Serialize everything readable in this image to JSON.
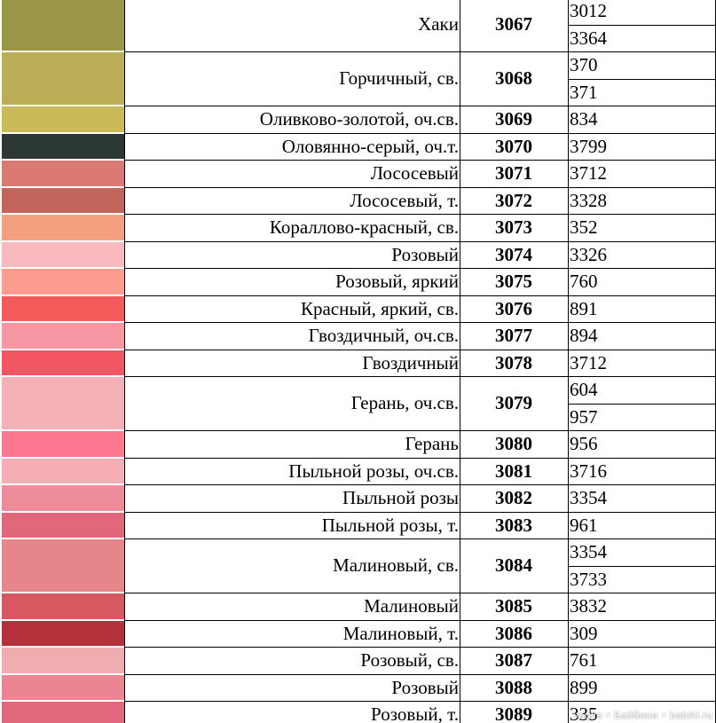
{
  "table": {
    "rows": [
      {
        "swatch": "#9b9748",
        "name": "Хаки",
        "code": "3067",
        "dmc": [
          "3012",
          "3364"
        ]
      },
      {
        "swatch": "#bcad57",
        "name": "Горчичный, св.",
        "code": "3068",
        "dmc": [
          "370",
          "371"
        ]
      },
      {
        "swatch": "#cbbb58",
        "name": "Оливково-золотой, оч.св.",
        "code": "3069",
        "dmc": [
          "834"
        ]
      },
      {
        "swatch": "#2c3833",
        "name": "Оловянно-серый, оч.т.",
        "code": "3070",
        "dmc": [
          "3799"
        ]
      },
      {
        "swatch": "#db7a72",
        "name": "Лососевый",
        "code": "3071",
        "dmc": [
          "3712"
        ]
      },
      {
        "swatch": "#c3645b",
        "name": "Лососевый, т.",
        "code": "3072",
        "dmc": [
          "3328"
        ]
      },
      {
        "swatch": "#f3a07f",
        "name": "Кораллово-красный, св.",
        "code": "3073",
        "dmc": [
          "352"
        ]
      },
      {
        "swatch": "#f8b9bf",
        "name": "Розовый",
        "code": "3074",
        "dmc": [
          "3326"
        ]
      },
      {
        "swatch": "#fd9d8f",
        "name": "Розовый, яркий",
        "code": "3075",
        "dmc": [
          "760"
        ]
      },
      {
        "swatch": "#f35b5b",
        "name": "Красный, яркий, св.",
        "code": "3076",
        "dmc": [
          "891"
        ]
      },
      {
        "swatch": "#f797a3",
        "name": "Гвоздичный, оч.св.",
        "code": "3077",
        "dmc": [
          "894"
        ]
      },
      {
        "swatch": "#f35663",
        "name": "Гвоздичный",
        "code": "3078",
        "dmc": [
          "3712"
        ]
      },
      {
        "swatch": "#f5b1b8",
        "name": "Герань, оч.св.",
        "code": "3079",
        "dmc": [
          "604",
          "957"
        ]
      },
      {
        "swatch": "#fb7890",
        "name": "Герань",
        "code": "3080",
        "dmc": [
          "956"
        ]
      },
      {
        "swatch": "#f6afb7",
        "name": "Пыльной розы, оч.св.",
        "code": "3081",
        "dmc": [
          "3716"
        ]
      },
      {
        "swatch": "#ee8c9c",
        "name": "Пыльной розы",
        "code": "3082",
        "dmc": [
          "3354"
        ]
      },
      {
        "swatch": "#e0687a",
        "name": "Пыльной розы, т.",
        "code": "3083",
        "dmc": [
          "961"
        ]
      },
      {
        "swatch": "#e6868b",
        "name": "Малиновый, св.",
        "code": "3084",
        "dmc": [
          "3354",
          "3733"
        ]
      },
      {
        "swatch": "#d75861",
        "name": "Малиновый",
        "code": "3085",
        "dmc": [
          "3832"
        ]
      },
      {
        "swatch": "#b4303a",
        "name": "Малиновый, т.",
        "code": "3086",
        "dmc": [
          "309"
        ]
      },
      {
        "swatch": "#efadaf",
        "name": "Розовый, св.",
        "code": "3087",
        "dmc": [
          "761"
        ]
      },
      {
        "swatch": "#ec8592",
        "name": "Розовый",
        "code": "3088",
        "dmc": [
          "899"
        ]
      },
      {
        "swatch": "#e2687c",
        "name": "Розовый, т.",
        "code": "3089",
        "dmc": [
          "335"
        ]
      }
    ]
  },
  "watermark": "Vaglia • Байбики • babiki.ru"
}
